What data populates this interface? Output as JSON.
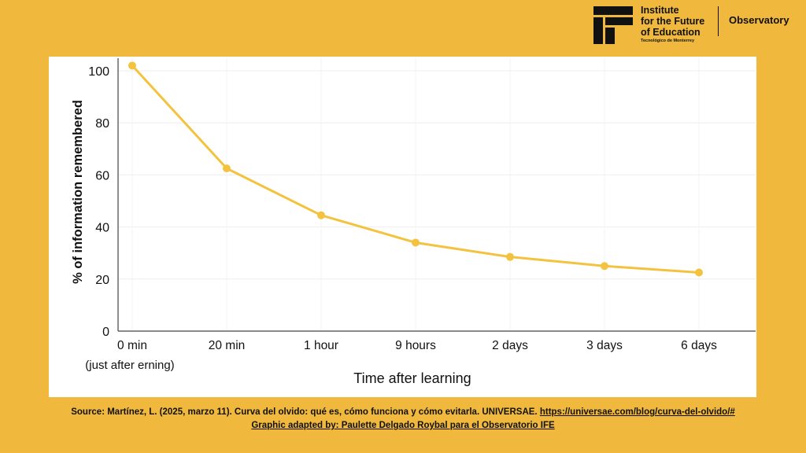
{
  "brand": {
    "name_lines": [
      "Institute",
      "for the Future",
      "of Education"
    ],
    "tagline": "Tecnológico de Monterrey",
    "section": "Observatory",
    "colors": {
      "background": "#F0B93E",
      "line": "#F3C33F",
      "text": "#111111"
    }
  },
  "chart_data": {
    "type": "line",
    "categories": [
      "0 min",
      "20 min",
      "1 hour",
      "9 hours",
      "2 days",
      "3 days",
      "6 days"
    ],
    "category_sublabels": [
      "(just after erning)",
      "",
      "",
      "",
      "",
      "",
      ""
    ],
    "values": [
      102,
      62.5,
      44.5,
      34,
      28.5,
      25,
      22.5
    ],
    "xlabel": "Time after learning",
    "ylabel": "% of information remembered",
    "yticks": [
      0,
      20,
      40,
      60,
      80,
      100
    ],
    "ylim": [
      0,
      104
    ],
    "grid": true,
    "legend": "none"
  },
  "footer": {
    "source": "Source: Martínez, L. (2025, marzo 11). Curva del olvido: qué es, cómo funciona y cómo evitarla. UNIVERSAE.",
    "link": "https://universae.com/blog/curva-del-olvido/#",
    "credit": "Graphic adapted by: Paulette Delgado Roybal para el Observatorio IFE"
  }
}
